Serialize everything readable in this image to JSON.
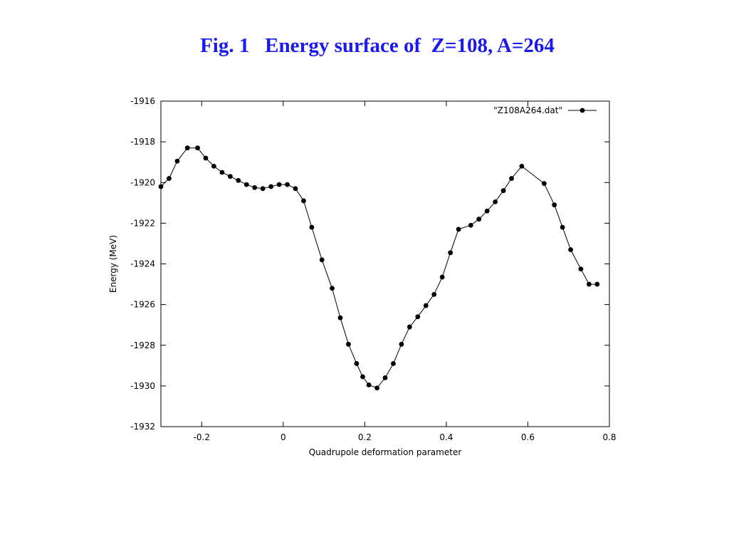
{
  "slide": {
    "title": "Fig. 1   Energy surface of  Z=108, A=264"
  },
  "chart_data": {
    "type": "line",
    "title": "",
    "xlabel": "Quadrupole deformation parameter",
    "ylabel": "Energy (MeV)",
    "xlim": [
      -0.3,
      0.8
    ],
    "ylim": [
      -1932,
      -1916
    ],
    "xticks": [
      -0.2,
      0,
      0.2,
      0.4,
      0.6,
      0.8
    ],
    "yticks": [
      -1932,
      -1930,
      -1928,
      -1926,
      -1924,
      -1922,
      -1920,
      -1918,
      -1916
    ],
    "xtick_labels": [
      "-0.2",
      "0",
      "0.2",
      "0.4",
      "0.6",
      "0.8"
    ],
    "ytick_labels": [
      "-1932",
      "-1930",
      "-1928",
      "-1926",
      "-1924",
      "-1922",
      "-1920",
      "-1918",
      "-1916"
    ],
    "legend_position": "top-right",
    "grid": false,
    "series": [
      {
        "name": "\"Z108A264.dat\"",
        "color": "#000000",
        "x": [
          -0.3,
          -0.28,
          -0.26,
          -0.235,
          -0.21,
          -0.19,
          -0.17,
          -0.15,
          -0.13,
          -0.11,
          -0.09,
          -0.07,
          -0.05,
          -0.03,
          -0.01,
          0.01,
          0.03,
          0.05,
          0.07,
          0.095,
          0.12,
          0.14,
          0.16,
          0.18,
          0.195,
          0.21,
          0.23,
          0.25,
          0.27,
          0.29,
          0.31,
          0.33,
          0.35,
          0.37,
          0.39,
          0.41,
          0.43,
          0.46,
          0.48,
          0.5,
          0.52,
          0.54,
          0.56,
          0.585,
          0.64,
          0.665,
          0.685,
          0.705,
          0.73,
          0.75,
          0.77
        ],
        "y": [
          -1920.2,
          -1919.8,
          -1918.95,
          -1918.3,
          -1918.3,
          -1918.8,
          -1919.2,
          -1919.5,
          -1919.7,
          -1919.9,
          -1920.1,
          -1920.25,
          -1920.3,
          -1920.2,
          -1920.1,
          -1920.1,
          -1920.3,
          -1920.9,
          -1922.2,
          -1923.8,
          -1925.2,
          -1926.65,
          -1927.95,
          -1928.9,
          -1929.55,
          -1929.95,
          -1930.1,
          -1929.6,
          -1928.9,
          -1927.95,
          -1927.1,
          -1926.6,
          -1926.05,
          -1925.5,
          -1924.65,
          -1923.45,
          -1922.3,
          -1922.1,
          -1921.8,
          -1921.4,
          -1920.95,
          -1920.4,
          -1919.8,
          -1919.2,
          -1920.05,
          -1921.1,
          -1922.2,
          -1923.3,
          -1924.25,
          -1925.0,
          -1925.0
        ]
      }
    ]
  }
}
